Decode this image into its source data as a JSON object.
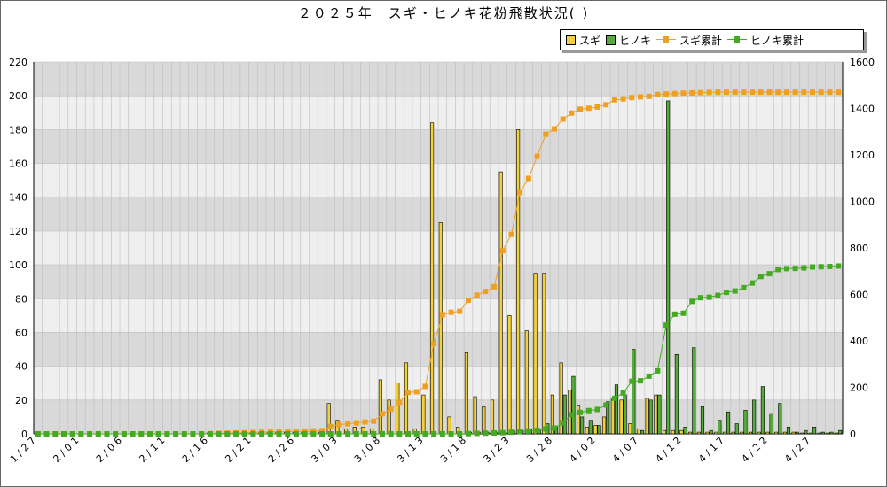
{
  "chart_data": {
    "type": "bar",
    "title": "２０２５年　スギ・ヒノキ花粉飛散状況(   )",
    "xlabel": "",
    "ylabel": "",
    "ylim": [
      0,
      220
    ],
    "y2lim": [
      0,
      1600
    ],
    "yticks": [
      0,
      20,
      40,
      60,
      80,
      100,
      120,
      140,
      160,
      180,
      200,
      220
    ],
    "y2ticks": [
      0,
      200,
      400,
      600,
      800,
      1000,
      1200,
      1400,
      1600
    ],
    "grid": true,
    "legend_position": "top-right",
    "categories": [
      "1/27",
      "1/28",
      "1/29",
      "1/30",
      "1/31",
      "2/01",
      "2/02",
      "2/03",
      "2/04",
      "2/05",
      "2/06",
      "2/07",
      "2/08",
      "2/09",
      "2/10",
      "2/11",
      "2/12",
      "2/13",
      "2/14",
      "2/15",
      "2/16",
      "2/17",
      "2/18",
      "2/19",
      "2/20",
      "2/21",
      "2/22",
      "2/23",
      "2/24",
      "2/25",
      "2/26",
      "2/27",
      "2/28",
      "3/01",
      "3/02",
      "3/03",
      "3/04",
      "3/05",
      "3/06",
      "3/07",
      "3/08",
      "3/09",
      "3/10",
      "3/11",
      "3/12",
      "3/13",
      "3/14",
      "3/15",
      "3/16",
      "3/17",
      "3/18",
      "3/19",
      "3/20",
      "3/21",
      "3/22",
      "3/23",
      "3/24",
      "3/25",
      "3/26",
      "3/27",
      "3/28",
      "3/29",
      "3/30",
      "3/31",
      "4/01",
      "4/02",
      "4/03",
      "4/04",
      "4/05",
      "4/06",
      "4/07",
      "4/08",
      "4/09",
      "4/10",
      "4/11",
      "4/12",
      "4/13",
      "4/14",
      "4/15",
      "4/16",
      "4/17",
      "4/18",
      "4/19",
      "4/20",
      "4/21",
      "4/22",
      "4/23",
      "4/24",
      "4/25",
      "4/26",
      "4/27",
      "4/28",
      "4/29",
      "4/30"
    ],
    "x_tick_labels": [
      "1/27",
      "2/01",
      "2/06",
      "2/11",
      "2/16",
      "2/21",
      "2/26",
      "3/03",
      "3/08",
      "3/13",
      "3/18",
      "3/23",
      "3/28",
      "4/02",
      "4/07",
      "4/12",
      "4/17",
      "4/22",
      "4/27"
    ],
    "series": [
      {
        "name": "スギ",
        "kind": "bar",
        "axis": "left",
        "color": "#f2d13c",
        "values": [
          0,
          0,
          0,
          0,
          0,
          0,
          0,
          0,
          0,
          0,
          0,
          0,
          0,
          0,
          0,
          0,
          0,
          0,
          0,
          0,
          0.5,
          0.5,
          0.5,
          0.5,
          0.5,
          0.5,
          0.5,
          1,
          1,
          1,
          1,
          1,
          1,
          1,
          18,
          8,
          3,
          4,
          4,
          3,
          32,
          20,
          30,
          42,
          3,
          23,
          184,
          125,
          10,
          4,
          48,
          22,
          16,
          20,
          155,
          70,
          180,
          61,
          95,
          95,
          23,
          42,
          26,
          17,
          4,
          5,
          10,
          21,
          20,
          6,
          3,
          21,
          23,
          2,
          2,
          2,
          1,
          1,
          1,
          1,
          1,
          1,
          1,
          1,
          1,
          1,
          1,
          1,
          1,
          0.5,
          0.5,
          0.5,
          0.5,
          0.5
        ]
      },
      {
        "name": "ヒノキ",
        "kind": "bar",
        "axis": "left",
        "color": "#55ab3c",
        "values": [
          0,
          0,
          0,
          0,
          0,
          0,
          0,
          0,
          0,
          0,
          0,
          0,
          0,
          0,
          0,
          0,
          0,
          0,
          0,
          0,
          0,
          0,
          0,
          0,
          0,
          0,
          0,
          0,
          0,
          0,
          0,
          0,
          0,
          0,
          0,
          0,
          0,
          0,
          0,
          0,
          0,
          0,
          0,
          0,
          0,
          0,
          0,
          0,
          0,
          0,
          1,
          1,
          1,
          1,
          1,
          2,
          2,
          3,
          3,
          6,
          4,
          23,
          34,
          10,
          8,
          5,
          19,
          29,
          23,
          50,
          2,
          20,
          23,
          197,
          47,
          4,
          51,
          16,
          2,
          8,
          13,
          6,
          14,
          20,
          28,
          12,
          18,
          4,
          1,
          2,
          4,
          1,
          1,
          2
        ]
      },
      {
        "name": "スギ累計",
        "kind": "line",
        "axis": "right",
        "color": "#f0a020",
        "values": [
          0,
          0,
          0,
          0,
          0,
          0,
          0,
          0,
          0,
          0,
          0,
          0,
          0,
          0,
          0,
          0,
          0,
          0,
          0,
          0,
          1,
          2,
          3,
          4,
          5,
          6,
          7,
          8,
          9,
          10,
          11,
          12,
          13,
          14,
          32,
          40,
          43,
          47,
          51,
          54,
          86,
          106,
          136,
          178,
          181,
          204,
          388,
          513,
          523,
          527,
          575,
          597,
          613,
          633,
          788,
          858,
          1038,
          1099,
          1194,
          1289,
          1312,
          1354,
          1380,
          1397,
          1401,
          1406,
          1416,
          1437,
          1441,
          1447,
          1450,
          1452,
          1460,
          1462,
          1464,
          1466,
          1467,
          1468,
          1469,
          1470,
          1470,
          1470,
          1470,
          1470,
          1470,
          1470,
          1470,
          1470,
          1470,
          1470,
          1470,
          1470,
          1470,
          1470
        ]
      },
      {
        "name": "ヒノキ累計",
        "kind": "line",
        "axis": "right",
        "color": "#44aa22",
        "values": [
          0,
          0,
          0,
          0,
          0,
          0,
          0,
          0,
          0,
          0,
          0,
          0,
          0,
          0,
          0,
          0,
          0,
          0,
          0,
          0,
          0,
          0,
          0,
          0,
          0,
          0,
          0,
          0,
          0,
          0,
          0,
          0,
          0,
          0,
          0,
          0,
          0,
          0,
          0,
          0,
          0,
          0,
          0,
          0,
          0,
          0,
          0,
          0,
          0,
          0,
          1,
          2,
          3,
          4,
          5,
          7,
          9,
          12,
          15,
          21,
          25,
          48,
          82,
          92,
          100,
          105,
          124,
          153,
          176,
          226,
          228,
          248,
          271,
          468,
          515,
          519,
          570,
          586,
          588,
          596,
          609,
          615,
          629,
          649,
          677,
          689,
          707,
          711,
          712,
          714,
          718,
          719,
          720,
          722
        ]
      }
    ]
  }
}
